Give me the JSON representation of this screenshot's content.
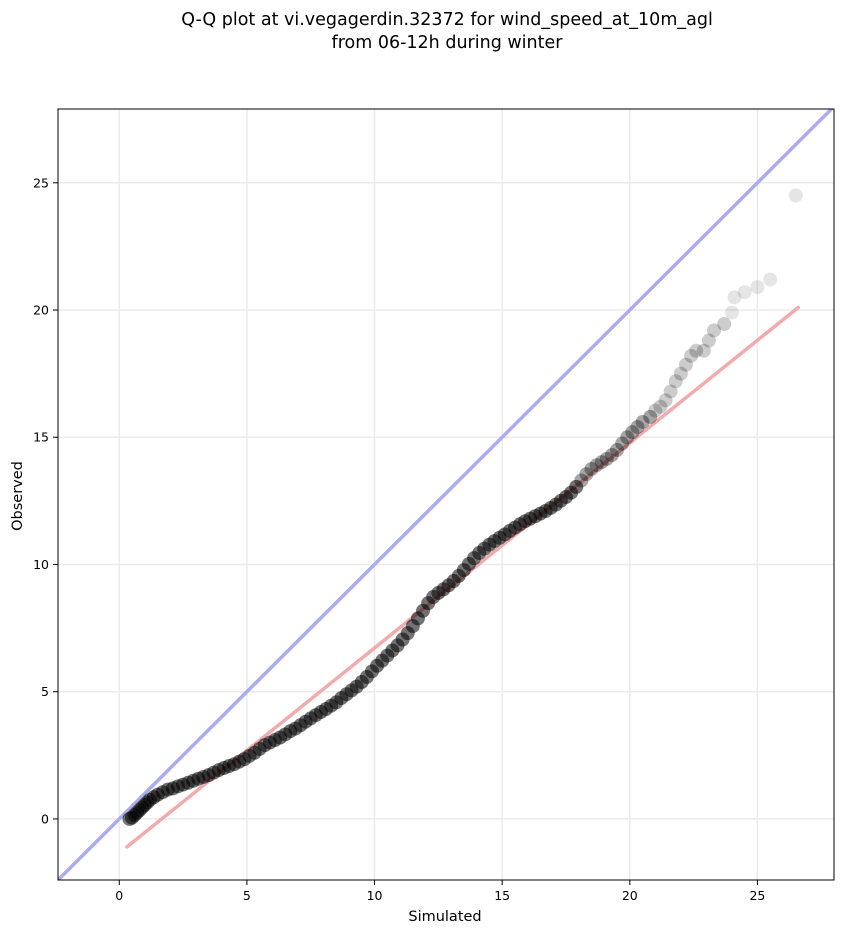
{
  "chart_data": {
    "type": "scatter",
    "title": [
      "Q-Q plot at vi.vegagerdin.32372 for wind_speed_at_10m_agl",
      "from 06-12h during winter"
    ],
    "xlabel": "Simulated",
    "ylabel": "Observed",
    "xlim": [
      -2.4,
      28.0
    ],
    "ylim": [
      -2.4,
      27.9
    ],
    "xticks": [
      0,
      5,
      10,
      15,
      20,
      25
    ],
    "yticks": [
      0,
      5,
      10,
      15,
      20,
      25
    ],
    "grid": true,
    "legend": "none",
    "colors": {
      "points": "#000000",
      "identity_line": "#a9acf2",
      "fit_line": "#f5aaaa",
      "grid": "#ebebeb"
    },
    "identity_line": {
      "from": [
        -2.4,
        -2.4
      ],
      "to": [
        28.0,
        28.0
      ]
    },
    "fit_line": {
      "from": [
        0.3,
        -1.1
      ],
      "to": [
        26.6,
        20.1
      ]
    },
    "series": [
      {
        "kind": "scatter",
        "points": [
          [
            0.4,
            0.0
          ],
          [
            0.5,
            0.05
          ],
          [
            0.6,
            0.15
          ],
          [
            0.7,
            0.25
          ],
          [
            0.8,
            0.35
          ],
          [
            0.9,
            0.45
          ],
          [
            1.0,
            0.55
          ],
          [
            1.1,
            0.65
          ],
          [
            1.2,
            0.75
          ],
          [
            1.35,
            0.85
          ],
          [
            1.5,
            0.95
          ],
          [
            1.7,
            1.05
          ],
          [
            1.9,
            1.15
          ],
          [
            2.1,
            1.2
          ],
          [
            2.3,
            1.28
          ],
          [
            2.5,
            1.35
          ],
          [
            2.7,
            1.42
          ],
          [
            2.9,
            1.5
          ],
          [
            3.1,
            1.58
          ],
          [
            3.3,
            1.65
          ],
          [
            3.5,
            1.72
          ],
          [
            3.7,
            1.82
          ],
          [
            3.9,
            1.92
          ],
          [
            4.1,
            2.0
          ],
          [
            4.3,
            2.08
          ],
          [
            4.5,
            2.15
          ],
          [
            4.7,
            2.25
          ],
          [
            4.9,
            2.35
          ],
          [
            5.1,
            2.48
          ],
          [
            5.3,
            2.6
          ],
          [
            5.5,
            2.75
          ],
          [
            5.7,
            2.9
          ],
          [
            5.9,
            3.0
          ],
          [
            6.1,
            3.1
          ],
          [
            6.3,
            3.2
          ],
          [
            6.5,
            3.32
          ],
          [
            6.7,
            3.45
          ],
          [
            6.9,
            3.55
          ],
          [
            7.1,
            3.68
          ],
          [
            7.3,
            3.82
          ],
          [
            7.5,
            3.95
          ],
          [
            7.7,
            4.08
          ],
          [
            7.9,
            4.2
          ],
          [
            8.1,
            4.32
          ],
          [
            8.3,
            4.45
          ],
          [
            8.5,
            4.58
          ],
          [
            8.7,
            4.75
          ],
          [
            8.9,
            4.9
          ],
          [
            9.1,
            5.05
          ],
          [
            9.3,
            5.2
          ],
          [
            9.5,
            5.38
          ],
          [
            9.7,
            5.58
          ],
          [
            9.9,
            5.8
          ],
          [
            10.1,
            6.02
          ],
          [
            10.3,
            6.22
          ],
          [
            10.5,
            6.42
          ],
          [
            10.7,
            6.62
          ],
          [
            10.9,
            6.82
          ],
          [
            11.1,
            7.05
          ],
          [
            11.3,
            7.3
          ],
          [
            11.5,
            7.58
          ],
          [
            11.7,
            7.88
          ],
          [
            11.9,
            8.18
          ],
          [
            12.1,
            8.48
          ],
          [
            12.3,
            8.72
          ],
          [
            12.5,
            8.88
          ],
          [
            12.7,
            9.02
          ],
          [
            12.9,
            9.18
          ],
          [
            13.1,
            9.35
          ],
          [
            13.3,
            9.55
          ],
          [
            13.5,
            9.78
          ],
          [
            13.7,
            10.02
          ],
          [
            13.9,
            10.25
          ],
          [
            14.1,
            10.45
          ],
          [
            14.3,
            10.62
          ],
          [
            14.5,
            10.78
          ],
          [
            14.7,
            10.92
          ],
          [
            14.9,
            11.05
          ],
          [
            15.1,
            11.18
          ],
          [
            15.3,
            11.32
          ],
          [
            15.5,
            11.45
          ],
          [
            15.7,
            11.58
          ],
          [
            15.9,
            11.7
          ],
          [
            16.1,
            11.8
          ],
          [
            16.3,
            11.9
          ],
          [
            16.5,
            12.0
          ],
          [
            16.7,
            12.1
          ],
          [
            16.9,
            12.22
          ],
          [
            17.1,
            12.35
          ],
          [
            17.3,
            12.5
          ],
          [
            17.5,
            12.65
          ],
          [
            17.7,
            12.82
          ],
          [
            17.9,
            13.05
          ],
          [
            18.1,
            13.3
          ],
          [
            18.3,
            13.55
          ],
          [
            18.5,
            13.75
          ],
          [
            18.7,
            13.9
          ],
          [
            18.9,
            14.02
          ],
          [
            19.1,
            14.15
          ],
          [
            19.3,
            14.3
          ],
          [
            19.5,
            14.5
          ],
          [
            19.7,
            14.75
          ],
          [
            19.9,
            15.0
          ],
          [
            20.1,
            15.2
          ],
          [
            20.3,
            15.4
          ],
          [
            20.5,
            15.6
          ],
          [
            20.8,
            15.8
          ],
          [
            21.0,
            16.05
          ],
          [
            21.2,
            16.2
          ],
          [
            21.4,
            16.45
          ],
          [
            21.6,
            16.8
          ],
          [
            21.8,
            17.2
          ],
          [
            22.0,
            17.5
          ],
          [
            22.2,
            17.85
          ],
          [
            22.4,
            18.2
          ],
          [
            22.6,
            18.4
          ],
          [
            22.9,
            18.4
          ],
          [
            23.1,
            18.8
          ],
          [
            23.3,
            19.2
          ],
          [
            23.7,
            19.45
          ],
          [
            24.0,
            19.9
          ],
          [
            24.1,
            20.5
          ],
          [
            24.5,
            20.7
          ],
          [
            25.0,
            20.9
          ],
          [
            25.5,
            21.2
          ],
          [
            26.5,
            24.5
          ]
        ]
      }
    ]
  }
}
